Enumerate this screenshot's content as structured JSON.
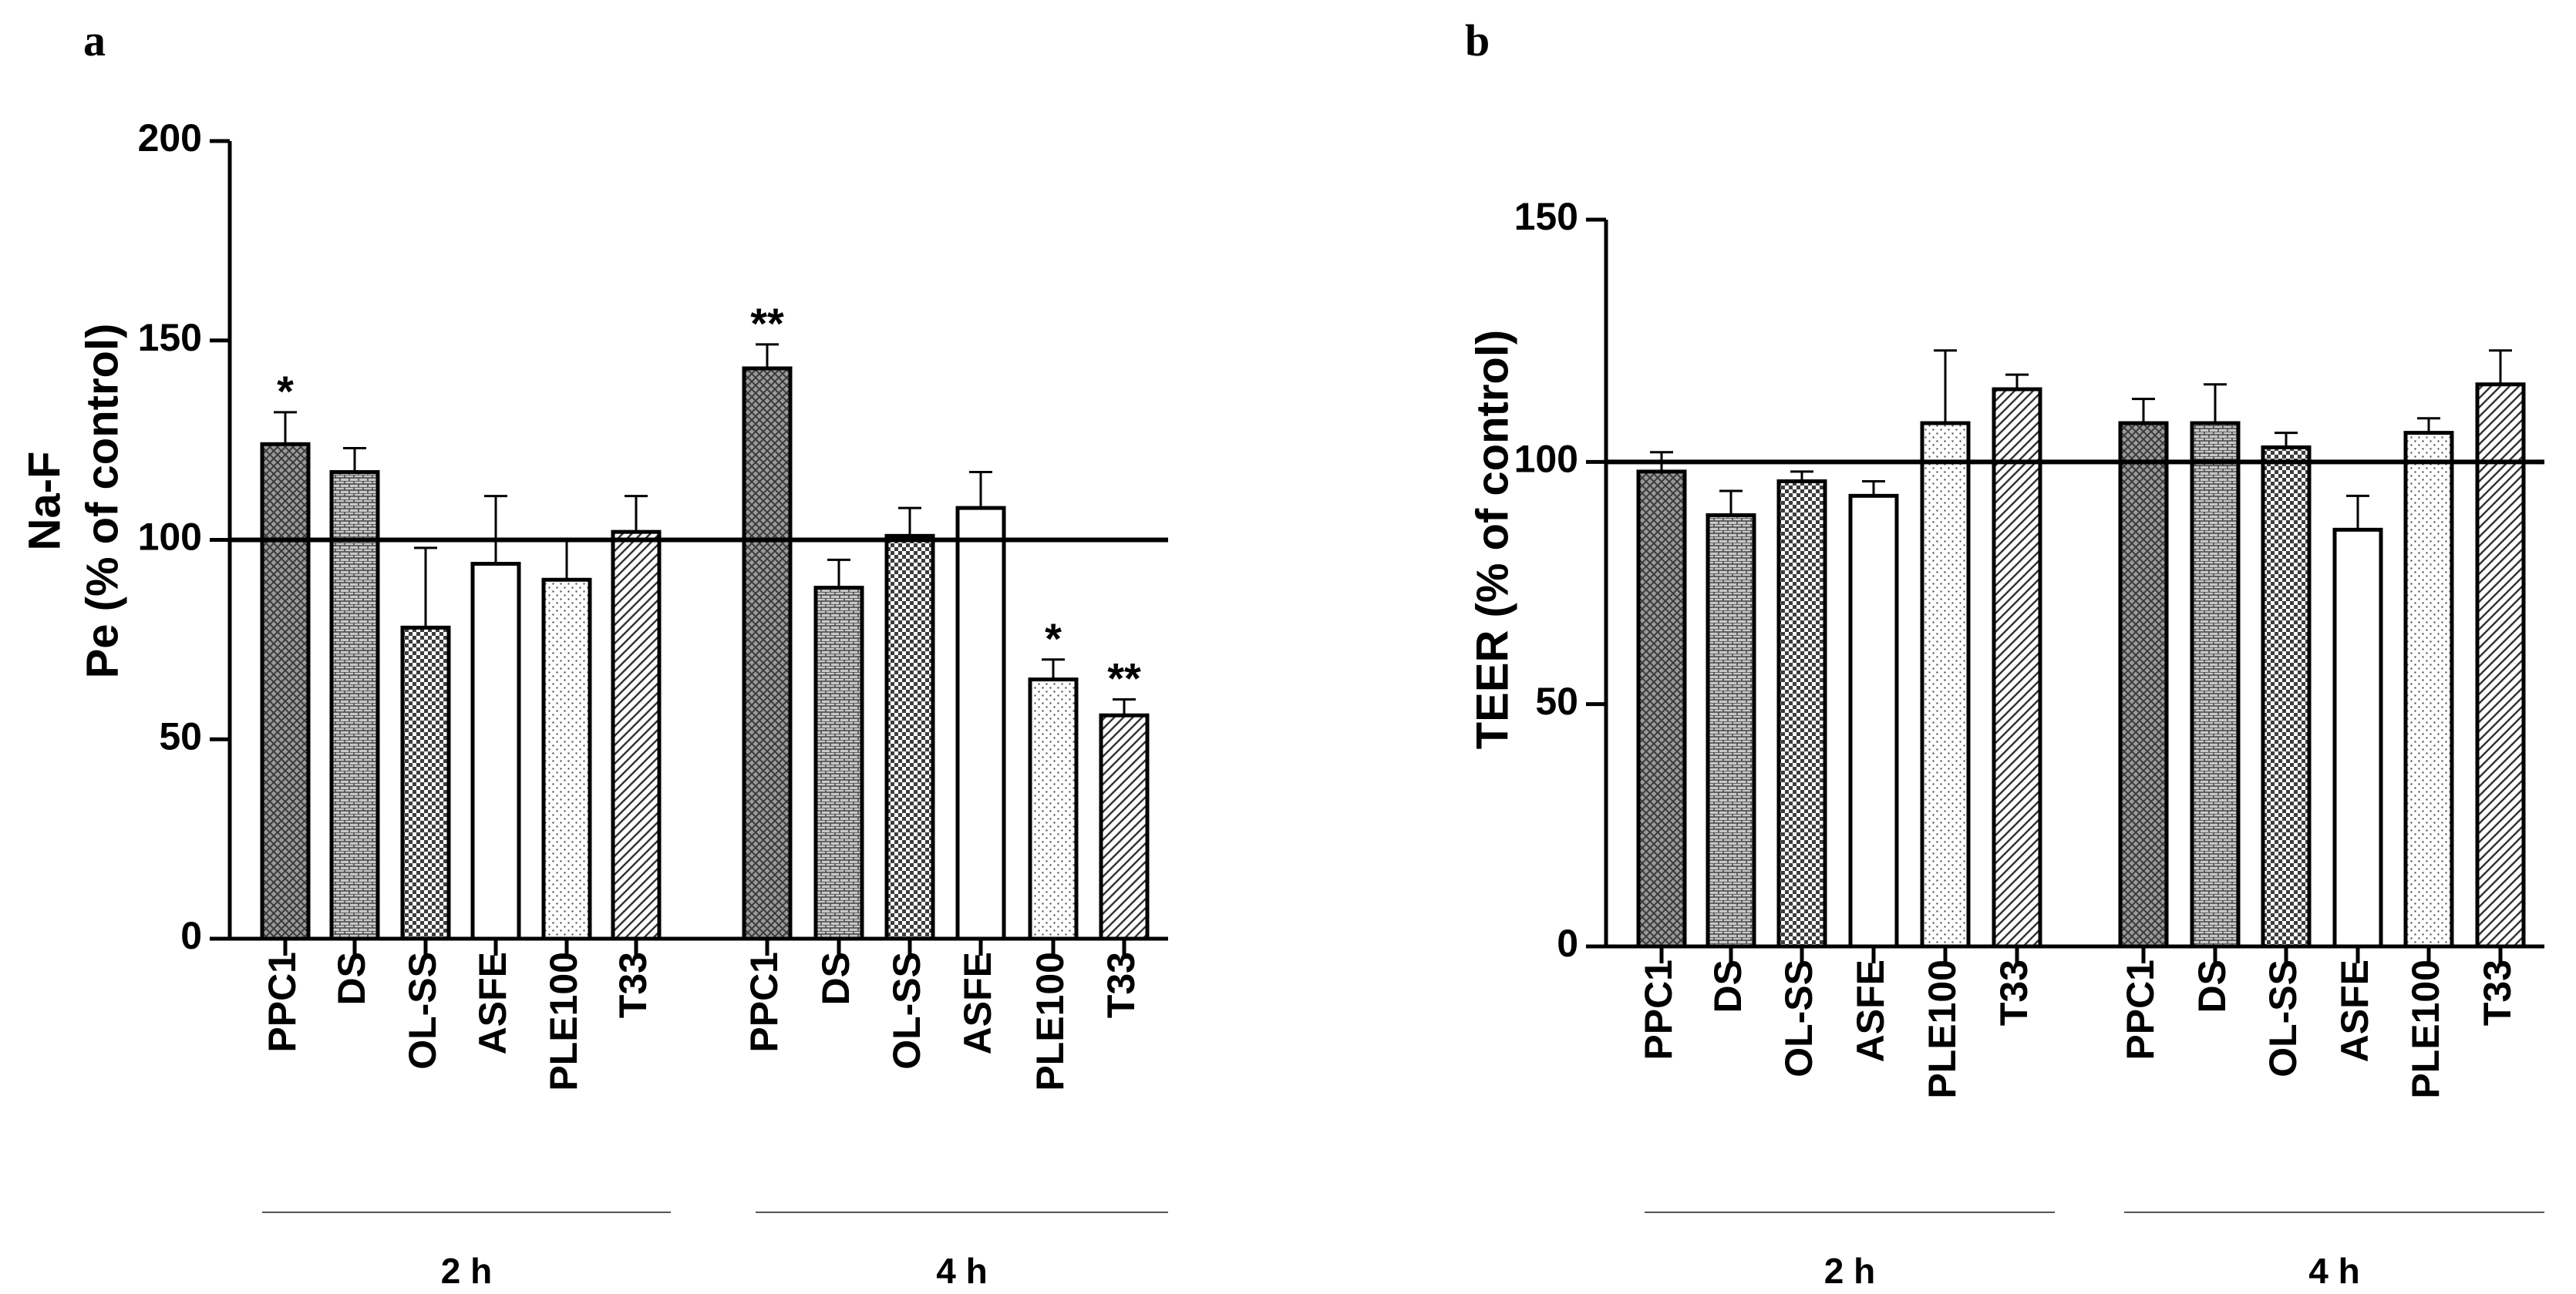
{
  "chart_data": [
    {
      "type": "bar",
      "panel_label": "a",
      "ylabel_lines": [
        "Na-F",
        "Pe (% of control)"
      ],
      "ylim": [
        0,
        200
      ],
      "yticks": [
        0,
        50,
        100,
        150,
        200
      ],
      "reference_line": 100,
      "groups": [
        {
          "label": "2 h",
          "categories": [
            "PPC1",
            "DS",
            "OL-SS",
            "ASFE",
            "PLE100",
            "T33"
          ],
          "values": [
            124,
            117,
            78,
            94,
            90,
            102
          ],
          "errors": [
            8,
            6,
            20,
            17,
            10,
            9
          ],
          "significance": [
            "*",
            "",
            "",
            "",
            "",
            ""
          ]
        },
        {
          "label": "4 h",
          "categories": [
            "PPC1",
            "DS",
            "OL-SS",
            "ASFE",
            "PLE100",
            "T33"
          ],
          "values": [
            143,
            88,
            101,
            108,
            65,
            56
          ],
          "errors": [
            6,
            7,
            7,
            9,
            5,
            4
          ],
          "significance": [
            "**",
            "",
            "",
            "",
            "*",
            "**"
          ]
        }
      ]
    },
    {
      "type": "bar",
      "panel_label": "b",
      "ylabel_lines": [
        "TEER (% of control)"
      ],
      "ylim": [
        0,
        150
      ],
      "yticks": [
        0,
        50,
        100,
        150
      ],
      "reference_line": 100,
      "groups": [
        {
          "label": "2 h",
          "categories": [
            "PPC1",
            "DS",
            "OL-SS",
            "ASFE",
            "PLE100",
            "T33"
          ],
          "values": [
            98,
            89,
            96,
            93,
            108,
            115
          ],
          "errors": [
            4,
            5,
            2,
            3,
            15,
            3
          ],
          "significance": [
            "",
            "",
            "",
            "",
            "",
            ""
          ]
        },
        {
          "label": "4 h",
          "categories": [
            "PPC1",
            "DS",
            "OL-SS",
            "ASFE",
            "PLE100",
            "T33"
          ],
          "values": [
            108,
            108,
            103,
            86,
            106,
            116
          ],
          "errors": [
            5,
            8,
            3,
            7,
            3,
            7
          ],
          "significance": [
            "",
            "",
            "",
            "",
            "",
            ""
          ]
        }
      ]
    }
  ]
}
